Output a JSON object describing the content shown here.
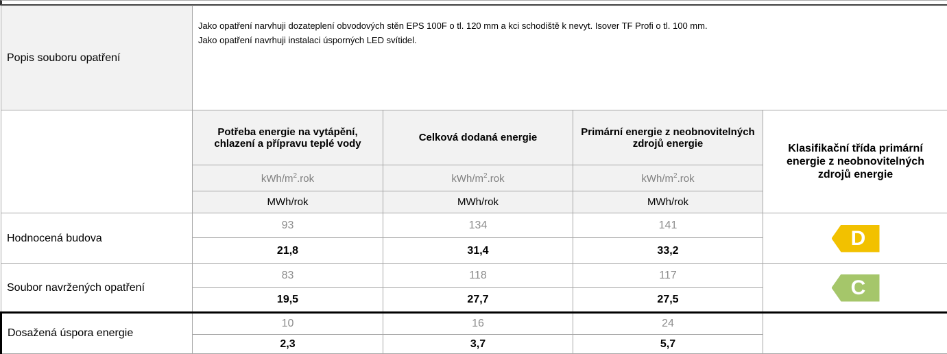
{
  "top_section": {
    "label": "Popis souboru opatření",
    "description": [
      "Jako opatření narvhuji dozateplení obvodových stěn EPS 100F o tl. 120 mm a kci schodiště k nevyt. Isover TF Profi o tl. 100 mm.",
      "Jako opatření navrhuji instalaci úsporných LED svítidel."
    ]
  },
  "table": {
    "columns": [
      "Potřeba energie na vytápění, chlazení a přípravu teplé vody",
      "Celková dodaná energie",
      "Primární energie z neobnovitelných zdrojů energie"
    ],
    "class_column": "Klasifikační třída primární energie z neobnovitelných zdrojů energie",
    "unit_area": {
      "base": "kWh/m",
      "sup": "2",
      "rest": ".rok"
    },
    "unit_total": "MWh/rok",
    "rows": [
      {
        "label": "Hodnocená budova",
        "per_area": [
          "93",
          "134",
          "141"
        ],
        "total": [
          "21,8",
          "31,4",
          "33,2"
        ],
        "class": "D",
        "class_color": "#f2c100"
      },
      {
        "label": "Soubor navržených opatření",
        "per_area": [
          "83",
          "118",
          "117"
        ],
        "total": [
          "19,5",
          "27,7",
          "27,5"
        ],
        "class": "C",
        "class_color": "#a5c66a"
      },
      {
        "label": "Dosažená úspora energie",
        "per_area": [
          "10",
          "16",
          "24"
        ],
        "total": [
          "2,3",
          "3,7",
          "5,7"
        ]
      }
    ]
  }
}
